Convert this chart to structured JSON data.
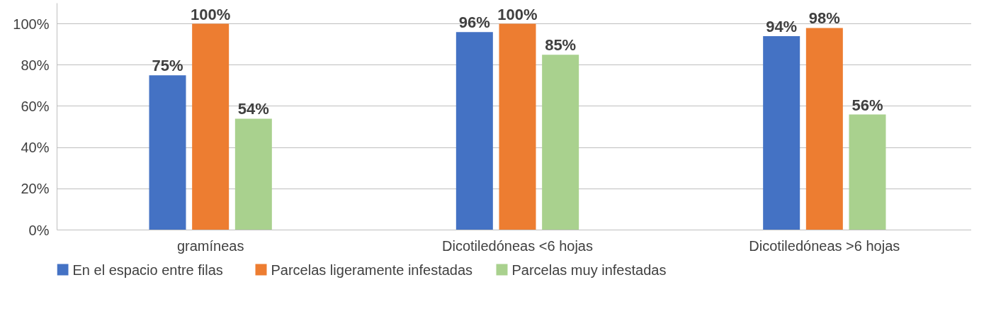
{
  "chart_data": {
    "type": "bar",
    "categories": [
      "gramíneas",
      "Dicotiledóneas <6 hojas",
      "Dicotiledóneas >6 hojas"
    ],
    "series": [
      {
        "name": "En el espacio entre filas",
        "color": "#4472c4",
        "values": [
          75,
          96,
          94
        ],
        "value_labels": [
          "75%",
          "96%",
          "94%"
        ]
      },
      {
        "name": "Parcelas ligeramente infestadas",
        "color": "#ed7d31",
        "values": [
          100,
          100,
          98
        ],
        "value_labels": [
          "100%",
          "100%",
          "98%"
        ]
      },
      {
        "name": "Parcelas muy infestadas",
        "color": "#a9d18e",
        "values": [
          54,
          85,
          56
        ],
        "value_labels": [
          "54%",
          "85%",
          "56%"
        ]
      }
    ],
    "ylim": [
      0,
      110
    ],
    "yticks": [
      {
        "value": 0,
        "label": "0%"
      },
      {
        "value": 20,
        "label": "20%"
      },
      {
        "value": 40,
        "label": "40%"
      },
      {
        "value": 60,
        "label": "60%"
      },
      {
        "value": 80,
        "label": "80%"
      },
      {
        "value": 100,
        "label": "100%"
      }
    ],
    "grid": "y",
    "legend": "bottom left"
  }
}
